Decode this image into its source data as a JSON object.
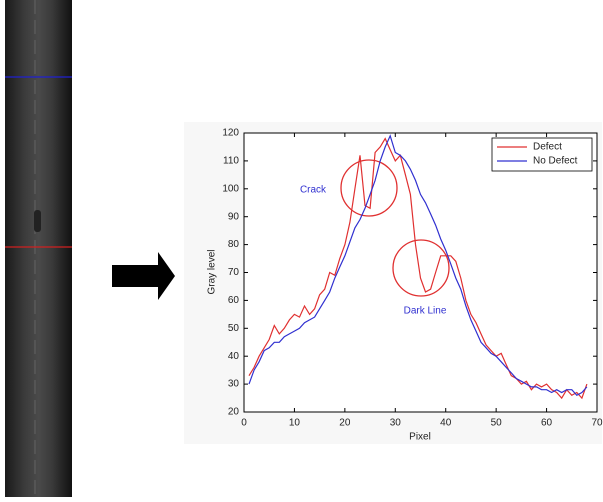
{
  "chart_data": {
    "type": "line",
    "xlabel": "Pixel",
    "ylabel": "Gray level",
    "x": [
      1,
      2,
      3,
      4,
      5,
      6,
      7,
      8,
      9,
      10,
      11,
      12,
      13,
      14,
      15,
      16,
      17,
      18,
      19,
      20,
      21,
      22,
      23,
      24,
      25,
      26,
      27,
      28,
      29,
      30,
      31,
      32,
      33,
      34,
      35,
      36,
      37,
      38,
      39,
      40,
      41,
      42,
      43,
      44,
      45,
      46,
      47,
      48,
      49,
      50,
      51,
      52,
      53,
      54,
      55,
      56,
      57,
      58,
      59,
      60,
      61,
      62,
      63,
      64,
      65,
      66,
      67,
      68
    ],
    "series": [
      {
        "name": "Defect",
        "color": "#e03030",
        "values": [
          33,
          36,
          40,
          43,
          46,
          51,
          48,
          50,
          53,
          55,
          54,
          58,
          55,
          57,
          62,
          64,
          70,
          69,
          75,
          80,
          88,
          100,
          112,
          94,
          93,
          113,
          115,
          118,
          114,
          110,
          112,
          105,
          98,
          80,
          68,
          63,
          64,
          70,
          76,
          76,
          76,
          74,
          68,
          60,
          55,
          52,
          48,
          44,
          42,
          40,
          41,
          37,
          33,
          32,
          30,
          31,
          28,
          30,
          29,
          30,
          28,
          27,
          25,
          28,
          26,
          27,
          25,
          30
        ]
      },
      {
        "name": "No Defect",
        "color": "#3030d0",
        "values": [
          30,
          35,
          38,
          42,
          43,
          45,
          45,
          47,
          48,
          49,
          50,
          52,
          53,
          54,
          57,
          60,
          63,
          68,
          72,
          76,
          81,
          86,
          89,
          93,
          98,
          103,
          110,
          115,
          119,
          113,
          112,
          110,
          107,
          103,
          98,
          95,
          91,
          87,
          82,
          78,
          73,
          68,
          64,
          58,
          53,
          49,
          45,
          43,
          41,
          40,
          38,
          36,
          34,
          32,
          31,
          30,
          29,
          29,
          28,
          28,
          27,
          28,
          27,
          28,
          28,
          26,
          27,
          29
        ]
      }
    ],
    "xlim": [
      0,
      70
    ],
    "xticks": [
      0,
      10,
      20,
      30,
      40,
      50,
      60,
      70
    ],
    "ylim": [
      20,
      120
    ],
    "yticks": [
      20,
      30,
      40,
      50,
      60,
      70,
      80,
      90,
      100,
      110,
      120
    ],
    "legend": "upper right",
    "annotations": [
      "Crack",
      "Dark Line"
    ]
  }
}
